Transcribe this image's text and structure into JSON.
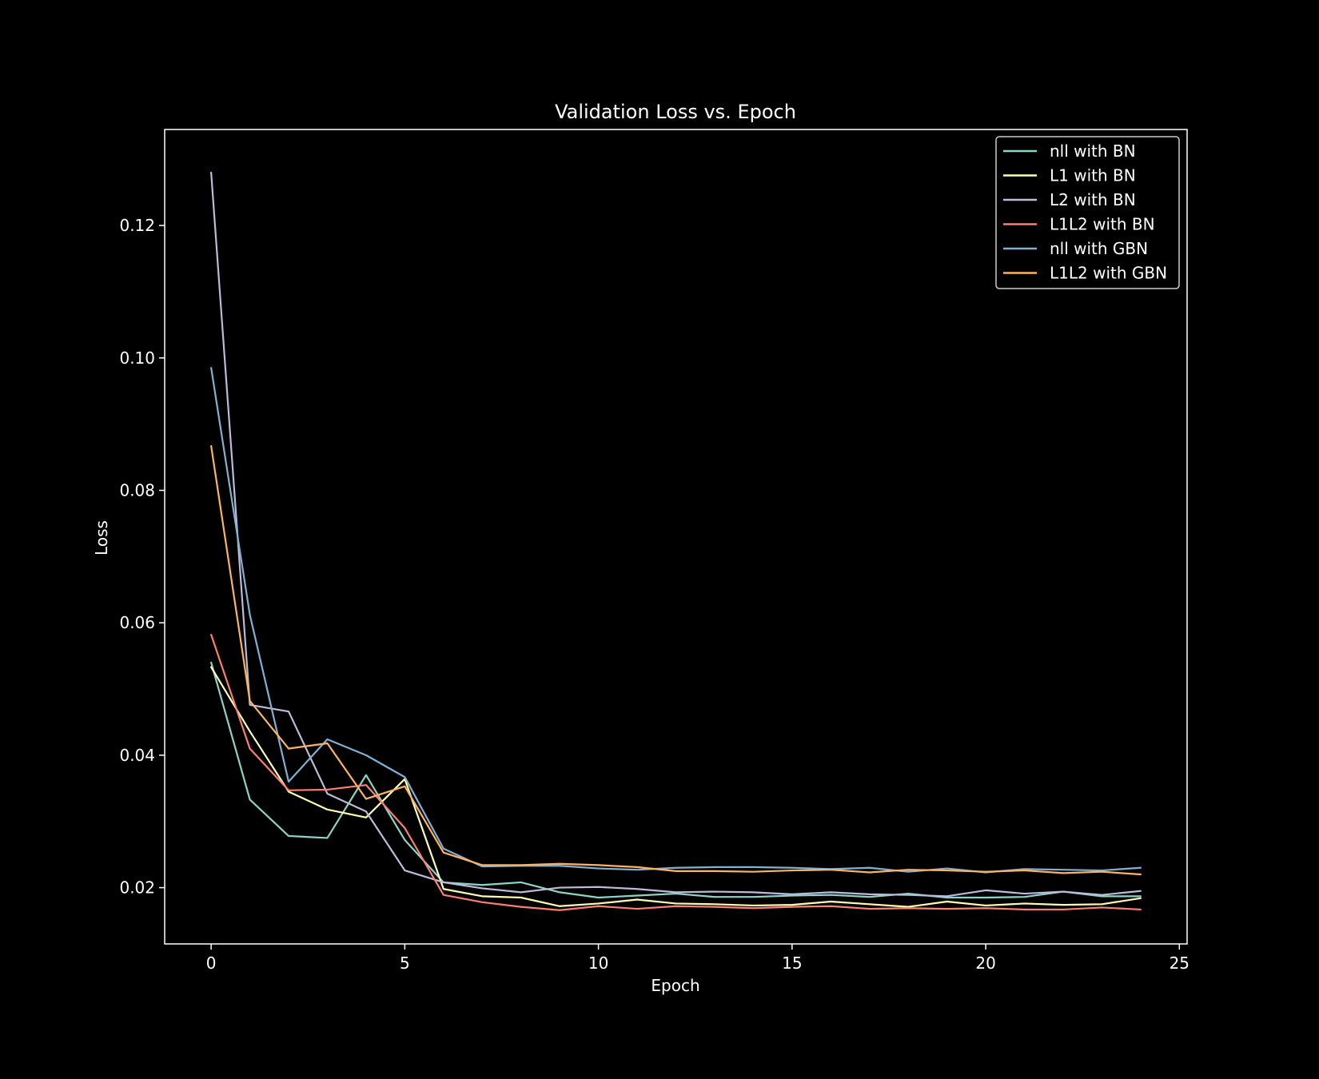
{
  "chart_data": {
    "type": "line",
    "title": "Validation Loss vs. Epoch",
    "xlabel": "Epoch",
    "ylabel": "Loss",
    "xlim": [
      -1.2,
      25.2
    ],
    "ylim": [
      0.0115,
      0.1345
    ],
    "xticks": [
      0,
      5,
      10,
      15,
      20,
      25
    ],
    "xtick_labels": [
      "0",
      "5",
      "10",
      "15",
      "20",
      "25"
    ],
    "yticks": [
      0.02,
      0.04,
      0.06,
      0.08,
      0.1,
      0.12
    ],
    "ytick_labels": [
      "0.02",
      "0.04",
      "0.06",
      "0.08",
      "0.10",
      "0.12"
    ],
    "grid": false,
    "legend_position": "top-right",
    "background": "#000000",
    "axes_color": "#ffffff",
    "x": [
      0,
      1,
      2,
      3,
      4,
      5,
      6,
      7,
      8,
      9,
      10,
      11,
      12,
      13,
      14,
      15,
      16,
      17,
      18,
      19,
      20,
      21,
      22,
      23,
      24
    ],
    "series": [
      {
        "name": "nll with BN",
        "color": "#8dd3c7",
        "values": [
          0.054,
          0.0333,
          0.0278,
          0.0275,
          0.037,
          0.0272,
          0.0208,
          0.0204,
          0.0208,
          0.0193,
          0.0185,
          0.0188,
          0.0191,
          0.0186,
          0.0186,
          0.0188,
          0.0189,
          0.0186,
          0.0191,
          0.0185,
          0.0185,
          0.0186,
          0.0194,
          0.0187,
          0.0187
        ]
      },
      {
        "name": "L1 with BN",
        "color": "#ffffb3",
        "values": [
          0.0533,
          0.0436,
          0.0345,
          0.0318,
          0.0306,
          0.0364,
          0.0198,
          0.0187,
          0.0185,
          0.0172,
          0.0176,
          0.0182,
          0.0176,
          0.0175,
          0.0173,
          0.0174,
          0.0179,
          0.0175,
          0.0171,
          0.0179,
          0.0173,
          0.0176,
          0.0174,
          0.0175,
          0.0184
        ]
      },
      {
        "name": "L2 with BN",
        "color": "#bebada",
        "values": [
          0.128,
          0.0476,
          0.0466,
          0.0342,
          0.0315,
          0.0226,
          0.0208,
          0.0199,
          0.0193,
          0.02,
          0.0201,
          0.0198,
          0.0193,
          0.0194,
          0.0193,
          0.019,
          0.0193,
          0.019,
          0.0189,
          0.0187,
          0.0196,
          0.0191,
          0.0194,
          0.0189,
          0.0195
        ]
      },
      {
        "name": "L1L2 with BN",
        "color": "#fb8072",
        "values": [
          0.0582,
          0.041,
          0.0347,
          0.0348,
          0.0355,
          0.029,
          0.0189,
          0.0178,
          0.0171,
          0.0166,
          0.0172,
          0.0168,
          0.0172,
          0.0171,
          0.0169,
          0.0171,
          0.0172,
          0.0168,
          0.0169,
          0.0168,
          0.0169,
          0.0167,
          0.0167,
          0.017,
          0.0167
        ]
      },
      {
        "name": "nll with GBN",
        "color": "#80b1d3",
        "values": [
          0.0985,
          0.0612,
          0.036,
          0.0424,
          0.04,
          0.0367,
          0.0259,
          0.0232,
          0.0233,
          0.0233,
          0.0229,
          0.0227,
          0.023,
          0.0231,
          0.0231,
          0.023,
          0.0228,
          0.023,
          0.0224,
          0.0229,
          0.0223,
          0.0228,
          0.0227,
          0.0226,
          0.023
        ]
      },
      {
        "name": "L1L2 with GBN",
        "color": "#fdb462",
        "values": [
          0.0867,
          0.0482,
          0.041,
          0.0418,
          0.0334,
          0.0353,
          0.0253,
          0.0234,
          0.0234,
          0.0236,
          0.0234,
          0.0231,
          0.0225,
          0.0225,
          0.0224,
          0.0226,
          0.0227,
          0.0223,
          0.0227,
          0.0226,
          0.0224,
          0.0226,
          0.0222,
          0.0224,
          0.022
        ]
      }
    ]
  }
}
